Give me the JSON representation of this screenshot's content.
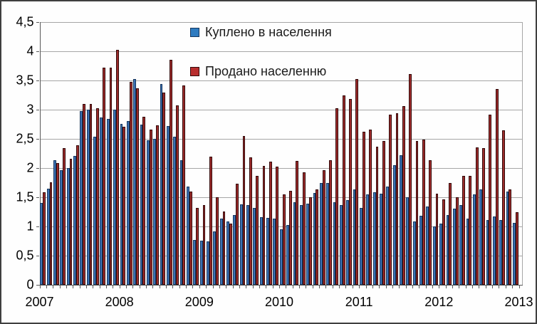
{
  "chart_data": {
    "type": "bar",
    "title": "",
    "x_year_labels": [
      "2007",
      "2008",
      "2009",
      "2010",
      "2011",
      "2012",
      "2013"
    ],
    "y_tick_labels": [
      "0",
      "0,5",
      "1",
      "1,5",
      "2",
      "2,5",
      "3",
      "3,5",
      "4",
      "4,5"
    ],
    "y_tick_values": [
      0,
      0.5,
      1,
      1.5,
      2,
      2.5,
      3,
      3.5,
      4,
      4.5
    ],
    "ylim": [
      0,
      4.5
    ],
    "months_per_year": 12,
    "grid": "horizontal",
    "legend_position": "inside-top",
    "series": [
      {
        "name": "Куплено в населення",
        "fill": "#3B72B5",
        "border": "#17375E",
        "legend_fill": "#2E7BC0",
        "values": [
          1.4,
          1.65,
          2.14,
          1.96,
          2.0,
          2.21,
          2.98,
          3.0,
          2.54,
          2.86,
          2.84,
          3.0,
          2.76,
          2.81,
          3.52,
          2.75,
          2.48,
          2.5,
          3.44,
          2.72,
          2.54,
          2.13,
          1.68,
          0.77,
          0.76,
          0.75,
          0.91,
          1.13,
          1.08,
          1.2,
          1.38,
          1.37,
          1.32,
          1.16,
          1.15,
          1.13,
          0.95,
          1.03,
          1.42,
          1.36,
          1.39,
          1.57,
          1.75,
          1.74,
          1.41,
          1.37,
          1.45,
          1.64,
          1.32,
          1.55,
          1.59,
          1.56,
          1.68,
          2.05,
          2.22,
          1.5,
          1.09,
          1.18,
          1.34,
          1.0,
          1.05,
          1.2,
          1.3,
          1.36,
          1.13,
          1.55,
          1.64,
          1.11,
          1.17,
          1.11,
          1.6,
          1.06
        ]
      },
      {
        "name": "Продано населенню",
        "fill": "#9C2B2B",
        "border": "#330A0A",
        "legend_fill": "#B82E2E",
        "values": [
          1.58,
          1.76,
          2.08,
          2.34,
          2.16,
          2.39,
          3.1,
          3.1,
          3.02,
          3.72,
          3.72,
          4.02,
          2.71,
          3.48,
          3.37,
          2.88,
          2.66,
          2.73,
          3.29,
          3.85,
          3.07,
          3.41,
          1.6,
          1.32,
          1.36,
          2.19,
          1.5,
          1.26,
          1.05,
          1.73,
          2.55,
          2.18,
          1.87,
          2.04,
          2.11,
          2.02,
          1.55,
          1.61,
          2.12,
          1.93,
          1.5,
          1.63,
          1.96,
          2.14,
          3.02,
          3.24,
          3.18,
          3.53,
          2.62,
          2.66,
          2.37,
          2.46,
          2.92,
          2.94,
          3.06,
          3.61,
          2.46,
          2.49,
          2.13,
          1.56,
          1.46,
          1.74,
          1.5,
          1.87,
          1.86,
          2.35,
          2.34,
          2.91,
          3.35,
          2.65,
          1.63,
          1.24
        ]
      }
    ]
  },
  "colors": {
    "gridline": "#a6a6a6",
    "axis": "#595959",
    "frame_border": "#3f3f3f",
    "background": "#fefefe"
  }
}
